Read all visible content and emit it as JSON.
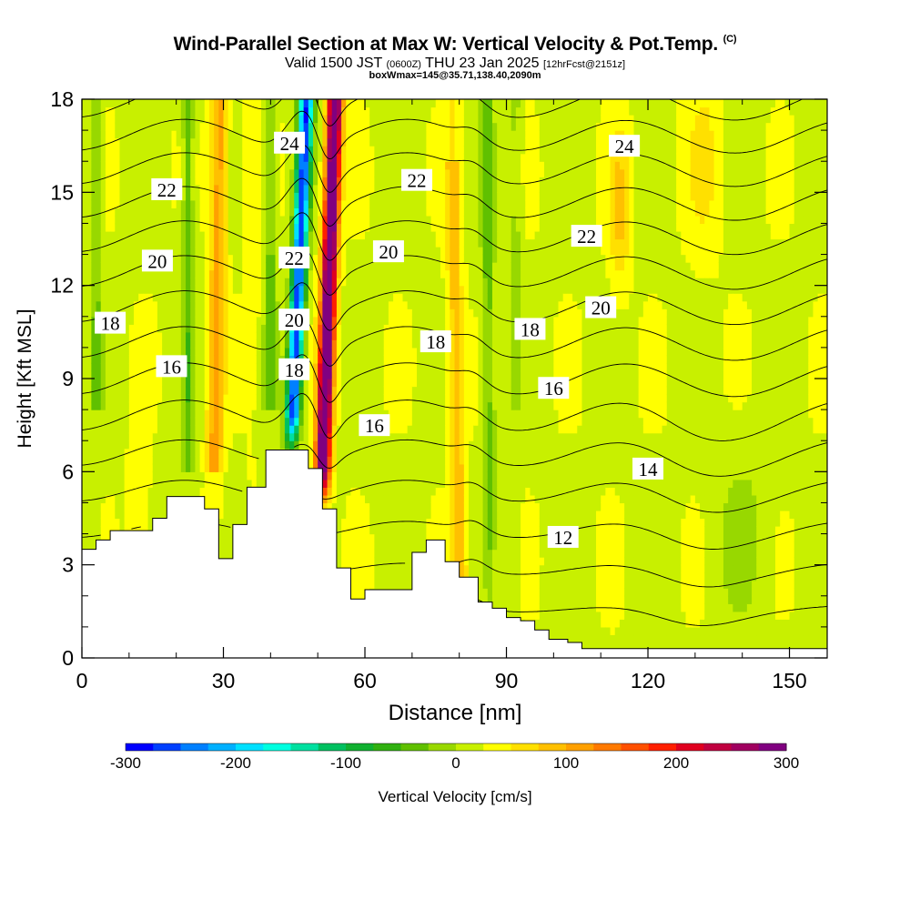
{
  "header": {
    "title": "Wind-Parallel Section at Max W: Vertical Velocity & Pot.Temp.",
    "title_mark": "(C)",
    "valid_a": "Valid 1500 JST",
    "valid_zulu": "(0600Z)",
    "valid_b": "THU 23 Jan 2025",
    "forecast": "[12hrFcst@2151z]",
    "box_info": "boxWmax=145@35.71,138.40,2090m"
  },
  "chart_data": {
    "type": "heatmap",
    "xlabel": "Distance [nm]",
    "ylabel": "Height [Kft MSL]",
    "xlim": [
      0,
      158
    ],
    "ylim": [
      0,
      18
    ],
    "x_ticks": [
      0,
      30,
      60,
      90,
      120,
      150
    ],
    "y_ticks": [
      0,
      3,
      6,
      9,
      12,
      15,
      18
    ],
    "grid": false,
    "colorbar": {
      "label": "Vertical Velocity [cm/s]",
      "min": -300,
      "max": 300,
      "tick_values": [
        -300,
        -200,
        -100,
        0,
        100,
        200,
        300
      ],
      "colors": [
        "#0000ff",
        "#0040ff",
        "#0080ff",
        "#00b0ff",
        "#00e0ff",
        "#00ffe0",
        "#00e0a0",
        "#00c060",
        "#10b030",
        "#30b010",
        "#60c000",
        "#98d800",
        "#c8f000",
        "#ffff00",
        "#ffe000",
        "#ffc000",
        "#ffa000",
        "#ff7a00",
        "#ff5000",
        "#ff2000",
        "#e00020",
        "#c00040",
        "#a00060",
        "#800080"
      ]
    },
    "velocity_features": [
      {
        "kind": "updraft",
        "x_range": [
          50,
          55
        ],
        "y_range": [
          4.8,
          18
        ],
        "peak_cm_s": 300
      },
      {
        "kind": "downdraft",
        "x_range": [
          44,
          49
        ],
        "y_range": [
          6.5,
          18
        ],
        "min_cm_s": -250
      },
      {
        "kind": "updraft",
        "x_range": [
          26,
          32
        ],
        "y_range": [
          6,
          18
        ],
        "peak_cm_s": 100
      },
      {
        "kind": "downdraft",
        "x_range": [
          21,
          24
        ],
        "y_range": [
          6,
          18
        ],
        "min_cm_s": -60
      },
      {
        "kind": "updraft",
        "x_range": [
          78,
          82
        ],
        "y_range": [
          3.5,
          15
        ],
        "peak_cm_s": 70
      },
      {
        "kind": "downdraft",
        "x_range": [
          85,
          88
        ],
        "y_range": [
          3.5,
          17
        ],
        "min_cm_s": -50
      },
      {
        "kind": "updraft",
        "x_range": [
          113,
          116
        ],
        "y_range": [
          12,
          17
        ],
        "peak_cm_s": 60
      }
    ],
    "terrain_kft": {
      "x": [
        0,
        3,
        6,
        9,
        12,
        15,
        18,
        20,
        26,
        29,
        32,
        35,
        39,
        42,
        46,
        48,
        51,
        54,
        57,
        60,
        63,
        66,
        70,
        73,
        77,
        80,
        84,
        87,
        90,
        93,
        96,
        99,
        103,
        106,
        158
      ],
      "y": [
        3.5,
        3.8,
        4.1,
        4.1,
        4.1,
        4.5,
        5.2,
        5.2,
        4.8,
        3.2,
        4.3,
        5.5,
        6.7,
        6.7,
        6.7,
        6.1,
        4.8,
        2.9,
        1.9,
        2.2,
        2.2,
        2.2,
        3.4,
        3.8,
        3.1,
        2.6,
        1.8,
        1.6,
        1.3,
        1.2,
        0.9,
        0.6,
        0.5,
        0.3,
        0.3
      ]
    },
    "theta_contours": {
      "interval": 1,
      "labels": [
        {
          "value": 24,
          "x": 44,
          "y": 16.6
        },
        {
          "value": 24,
          "x": 115,
          "y": 16.5
        },
        {
          "value": 22,
          "x": 18,
          "y": 15.1
        },
        {
          "value": 22,
          "x": 71,
          "y": 15.4
        },
        {
          "value": 22,
          "x": 107,
          "y": 13.6
        },
        {
          "value": 22,
          "x": 45,
          "y": 12.9
        },
        {
          "value": 20,
          "x": 16,
          "y": 12.8
        },
        {
          "value": 20,
          "x": 65,
          "y": 13.1
        },
        {
          "value": 20,
          "x": 110,
          "y": 11.3
        },
        {
          "value": 20,
          "x": 45,
          "y": 10.9
        },
        {
          "value": 18,
          "x": 6,
          "y": 10.8
        },
        {
          "value": 18,
          "x": 75,
          "y": 10.2
        },
        {
          "value": 18,
          "x": 95,
          "y": 10.6
        },
        {
          "value": 18,
          "x": 45,
          "y": 9.3
        },
        {
          "value": 16,
          "x": 19,
          "y": 9.4
        },
        {
          "value": 16,
          "x": 62,
          "y": 7.5
        },
        {
          "value": 16,
          "x": 100,
          "y": 8.7
        },
        {
          "value": 14,
          "x": 120,
          "y": 6.1
        },
        {
          "value": 12,
          "x": 102,
          "y": 3.9
        }
      ]
    }
  }
}
